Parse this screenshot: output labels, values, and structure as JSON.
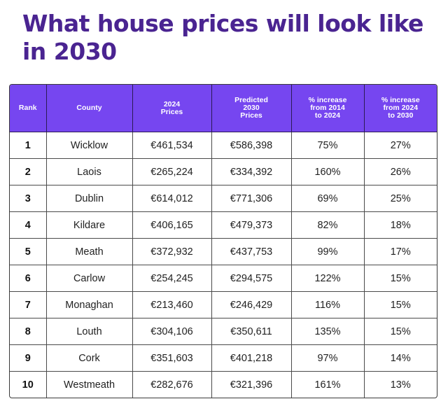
{
  "title": "What house prices will look like in 2030",
  "accent_color": "#7646f0",
  "title_color": "#4a2491",
  "table": {
    "headers": [
      "Rank",
      "County",
      "2024\nPrices",
      "Predicted\n2030\nPrices",
      "% increase\nfrom 2014\nto 2024",
      "% increase\nfrom 2024\nto 2030"
    ],
    "rows": [
      [
        "1",
        "Wicklow",
        "€461,534",
        "€586,398",
        "75%",
        "27%"
      ],
      [
        "2",
        "Laois",
        "€265,224",
        "€334,392",
        "160%",
        "26%"
      ],
      [
        "3",
        "Dublin",
        "€614,012",
        "€771,306",
        "69%",
        "25%"
      ],
      [
        "4",
        "Kildare",
        "€406,165",
        "€479,373",
        "82%",
        "18%"
      ],
      [
        "5",
        "Meath",
        "€372,932",
        "€437,753",
        "99%",
        "17%"
      ],
      [
        "6",
        "Carlow",
        "€254,245",
        "€294,575",
        "122%",
        "15%"
      ],
      [
        "7",
        "Monaghan",
        "€213,460",
        "€246,429",
        "116%",
        "15%"
      ],
      [
        "8",
        "Louth",
        "€304,106",
        "€350,611",
        "135%",
        "15%"
      ],
      [
        "9",
        "Cork",
        "€351,603",
        "€401,218",
        "97%",
        "14%"
      ],
      [
        "10",
        "Westmeath",
        "€282,676",
        "€321,396",
        "161%",
        "13%"
      ]
    ]
  }
}
